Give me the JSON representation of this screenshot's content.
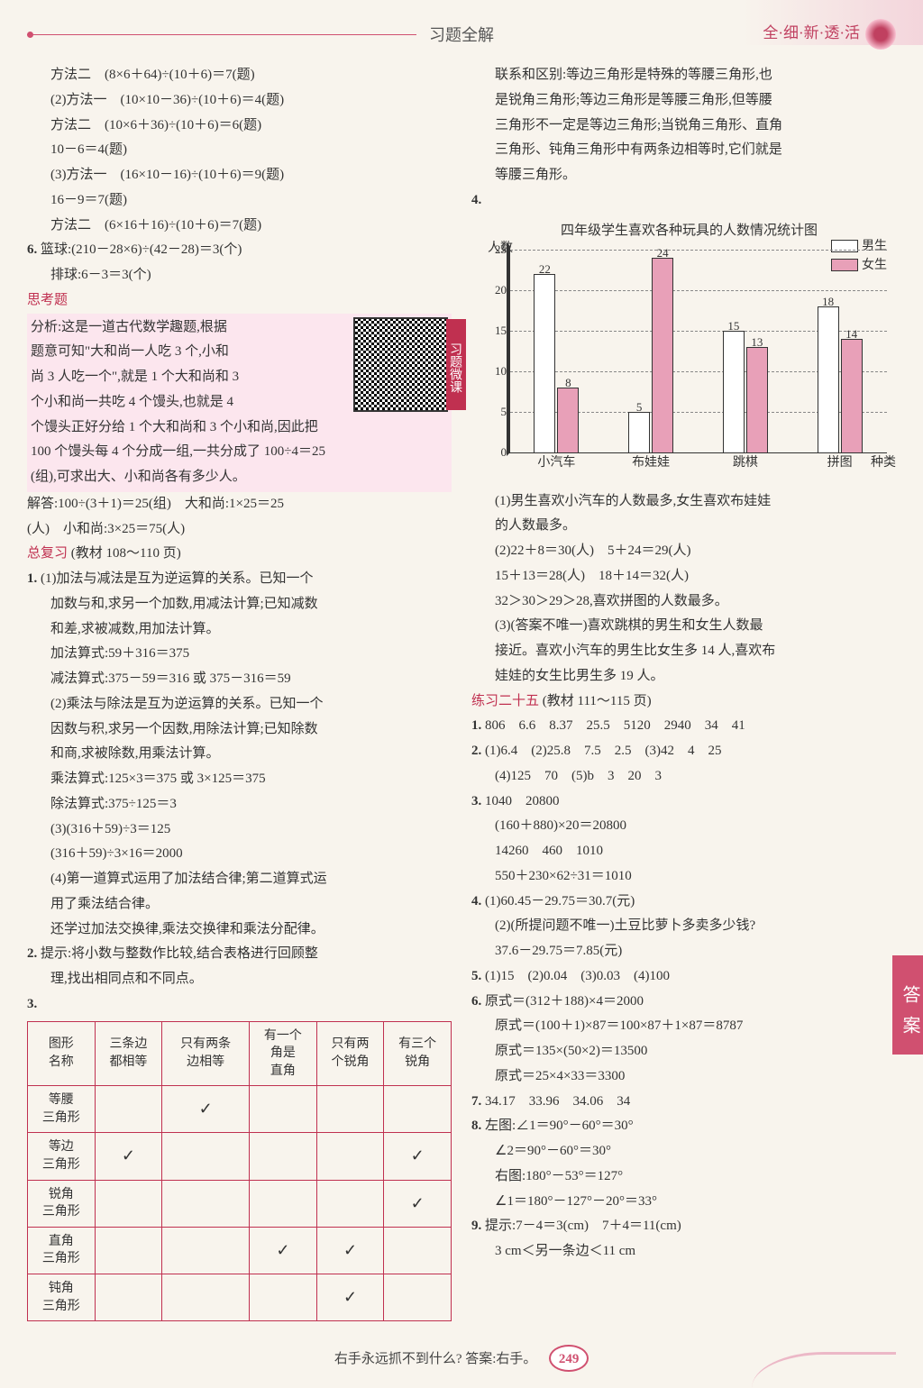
{
  "header": {
    "center": "习题全解",
    "right": "全·细·新·透·活"
  },
  "left": {
    "p01": "方法二　(8×6＋64)÷(10＋6)＝7(题)",
    "p02": "(2)方法一　(10×10－36)÷(10＋6)＝4(题)",
    "p03": "方法二　(10×6＋36)÷(10＋6)＝6(题)",
    "p04": "10－6＝4(题)",
    "p05": "(3)方法一　(16×10－16)÷(10＋6)＝9(题)",
    "p06": "16－9＝7(题)",
    "p07": "方法二　(6×16＋16)÷(10＋6)＝7(题)",
    "p08_num": "6.",
    "p08": "篮球:(210－28×6)÷(42－28)＝3(个)",
    "p09": "排球:6－3＝3(个)",
    "sikao_title": "思考题",
    "qr_label": "习题微课",
    "sk1": "分析:这是一道古代数学趣题,根据",
    "sk2": "题意可知\"大和尚一人吃 3 个,小和",
    "sk3": "尚 3 人吃一个\",就是 1 个大和尚和 3",
    "sk4": "个小和尚一共吃 4 个馒头,也就是 4",
    "sk5": "个馒头正好分给 1 个大和尚和 3 个小和尚,因此把",
    "sk6": "100 个馒头每 4 个分成一组,一共分成了 100÷4＝25",
    "sk7": "(组),可求出大、小和尚各有多少人。",
    "sk8": "解答:100÷(3＋1)＝25(组)　大和尚:1×25＝25",
    "sk9": "(人)　小和尚:3×25＝75(人)",
    "zong_title": "总复习",
    "zong_ref": "(教材 108～110 页)",
    "z1_num": "1.",
    "z1a": "(1)加法与减法是互为逆运算的关系。已知一个",
    "z1b": "加数与和,求另一个加数,用减法计算;已知减数",
    "z1c": "和差,求被减数,用加法计算。",
    "z1d": "加法算式:59＋316＝375",
    "z1e": "减法算式:375－59＝316 或 375－316＝59",
    "z1f": "(2)乘法与除法是互为逆运算的关系。已知一个",
    "z1g": "因数与积,求另一个因数,用除法计算;已知除数",
    "z1h": "和商,求被除数,用乘法计算。",
    "z1i": "乘法算式:125×3＝375 或 3×125＝375",
    "z1j": "除法算式:375÷125＝3",
    "z1k": "(3)(316＋59)÷3＝125",
    "z1l": "(316＋59)÷3×16＝2000",
    "z1m": "(4)第一道算式运用了加法结合律;第二道算式运",
    "z1n": "用了乘法结合律。",
    "z1o": "还学过加法交换律,乘法交换律和乘法分配律。",
    "z2_num": "2.",
    "z2": "提示:将小数与整数作比较,结合表格进行回顾整",
    "z2b": "理,找出相同点和不同点。",
    "z3_num": "3.",
    "table": {
      "headers": [
        "图形\n名称",
        "三条边\n都相等",
        "只有两条\n边相等",
        "有一个\n角是\n直角",
        "只有两\n个锐角",
        "有三个\n锐角"
      ],
      "rows": [
        {
          "name": "等腰\n三角形",
          "cells": [
            "",
            "✓",
            "",
            "",
            ""
          ]
        },
        {
          "name": "等边\n三角形",
          "cells": [
            "✓",
            "",
            "",
            "",
            "✓"
          ]
        },
        {
          "name": "锐角\n三角形",
          "cells": [
            "",
            "",
            "",
            "",
            "✓"
          ]
        },
        {
          "name": "直角\n三角形",
          "cells": [
            "",
            "",
            "✓",
            "✓",
            ""
          ]
        },
        {
          "name": "钝角\n三角形",
          "cells": [
            "",
            "",
            "",
            "✓",
            ""
          ]
        }
      ]
    }
  },
  "right": {
    "r1": "联系和区别:等边三角形是特殊的等腰三角形,也",
    "r2": "是锐角三角形;等边三角形是等腰三角形,但等腰",
    "r3": "三角形不一定是等边三角形;当锐角三角形、直角",
    "r4": "三角形、钝角三角形中有两条边相等时,它们就是",
    "r5": "等腰三角形。",
    "q4_num": "4.",
    "chart": {
      "title": "四年级学生喜欢各种玩具的人数情况统计图",
      "y_label": "人数",
      "x_label": "种类",
      "legend_boy": "男生",
      "legend_girl": "女生",
      "ymax": 25,
      "ytick": 5,
      "bar_colors": {
        "boy": "#ffffff",
        "girl": "#e8a0b8",
        "border": "#333333"
      },
      "grid_color": "#888888",
      "categories": [
        "小汽车",
        "布娃娃",
        "跳棋",
        "拼图"
      ],
      "series": [
        {
          "cat": "小汽车",
          "boy": 22,
          "girl": 8,
          "boy_u": true
        },
        {
          "cat": "布娃娃",
          "boy": 5,
          "girl": 24,
          "girl_u": true
        },
        {
          "cat": "跳棋",
          "boy": 15,
          "girl": 13,
          "boy_u": true
        },
        {
          "cat": "拼图",
          "boy": 18,
          "girl": 14,
          "boy_u": true
        }
      ]
    },
    "a1": "(1)男生喜欢小汽车的人数最多,女生喜欢布娃娃",
    "a1b": "的人数最多。",
    "a2": "(2)22＋8＝30(人)　5＋24＝29(人)",
    "a2b": "15＋13＝28(人)　18＋14＝32(人)",
    "a2c": "32＞30＞29＞28,喜欢拼图的人数最多。",
    "a3": "(3)(答案不唯一)喜欢跳棋的男生和女生人数最",
    "a3b": "接近。喜欢小汽车的男生比女生多 14 人,喜欢布",
    "a3c": "娃娃的女生比男生多 19 人。",
    "lx_title": "练习二十五",
    "lx_ref": "(教材 111～115 页)",
    "l1_num": "1.",
    "l1": "806　6.6　8.37　25.5　5120　2940　34　41",
    "l2_num": "2.",
    "l2": "(1)6.4　(2)25.8　7.5　2.5　(3)42　4　25",
    "l2b": "(4)125　70　(5)b　3　20　3",
    "l3_num": "3.",
    "l3": "1040　20800",
    "l3b": "(160＋880)×20＝20800",
    "l3c": "14260　460　1010",
    "l3d": "550＋230×62÷31＝1010",
    "l4_num": "4.",
    "l4": "(1)60.45－29.75＝30.7(元)",
    "l4b": "(2)(所提问题不唯一)土豆比萝卜多卖多少钱?",
    "l4c": "37.6－29.75＝7.85(元)",
    "l5_num": "5.",
    "l5": "(1)15　(2)0.04　(3)0.03　(4)100",
    "l6_num": "6.",
    "l6": "原式＝(312＋188)×4＝2000",
    "l6b": "原式＝(100＋1)×87＝100×87＋1×87＝8787",
    "l6c": "原式＝135×(50×2)＝13500",
    "l6d": "原式＝25×4×33＝3300",
    "l7_num": "7.",
    "l7": "34.17　33.96　34.06　34",
    "l8_num": "8.",
    "l8": "左图:∠1＝90°－60°＝30°",
    "l8b": "∠2＝90°－60°＝30°",
    "l8c": "右图:180°－53°＝127°",
    "l8d": "∠1＝180°－127°－20°＝33°",
    "l9_num": "9.",
    "l9": "提示:7－4＝3(cm)　7＋4＝11(cm)",
    "l9b": "3 cm＜另一条边＜11 cm"
  },
  "side_tab": "答案",
  "footer": {
    "text": "右手永远抓不到什么? 答案:右手。",
    "page": "249"
  }
}
